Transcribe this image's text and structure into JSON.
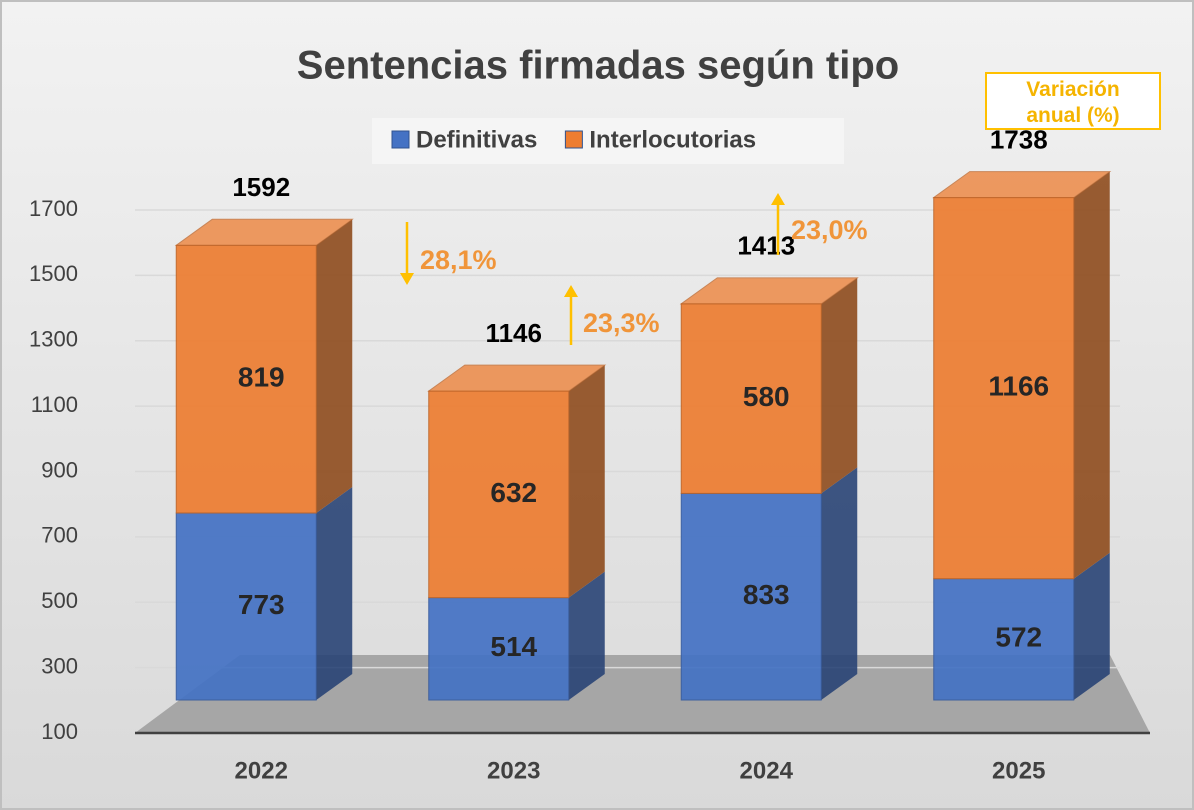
{
  "chart_data": {
    "type": "bar3d_stacked",
    "title": "Sentencias firmadas según tipo",
    "note": "Variación anual (%)",
    "categories": [
      "2022",
      "2023",
      "2024",
      "2025"
    ],
    "series": [
      {
        "name": "Definitivas",
        "color": "#4472c4",
        "values": [
          773,
          514,
          833,
          572
        ]
      },
      {
        "name": "Interlocutorias",
        "color": "#ed7d31",
        "values": [
          819,
          632,
          580,
          1166
        ]
      }
    ],
    "totals": [
      1592,
      1146,
      1413,
      1738
    ],
    "annotations": [
      {
        "text": "28,1%",
        "direction": "down"
      },
      {
        "text": "23,3%",
        "direction": "up"
      },
      {
        "text": "23,0%",
        "direction": "up"
      }
    ],
    "annotation_color": "#f0953a",
    "arrow_color": "#ffc000",
    "ylim": [
      100,
      1700
    ],
    "yticks": [
      100,
      300,
      500,
      700,
      900,
      1100,
      1300,
      1500,
      1700
    ],
    "grid": true,
    "legend": "top"
  }
}
